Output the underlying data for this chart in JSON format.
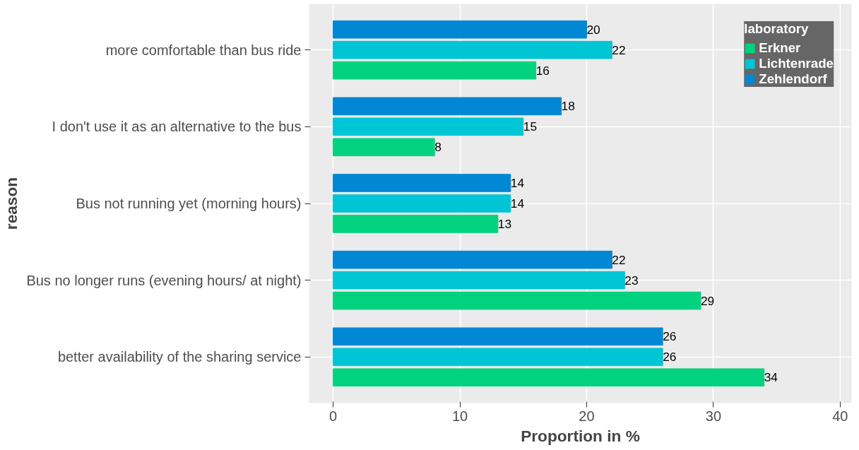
{
  "chart_data": {
    "type": "bar",
    "orientation": "horizontal",
    "xlabel": "Proportion in %",
    "ylabel": "reason",
    "legend_title": "laboratory",
    "legend": "top right",
    "grid": true,
    "data_labels": true,
    "categories": [
      "more comfortable than bus ride",
      "I don't use it as an alternative to the bus",
      "Bus not running yet (morning hours)",
      "Bus no longer runs (evening hours/ at night)",
      "better availability of the sharing service"
    ],
    "xlim": [
      -1.9,
      40.9
    ],
    "xticks": [
      0,
      10,
      20,
      30,
      40
    ],
    "series": [
      {
        "name": "Erkner",
        "color": "#00d27f",
        "values": [
          16,
          8,
          13,
          29,
          34
        ]
      },
      {
        "name": "Lichtenrade",
        "color": "#00c5d5",
        "values": [
          22,
          15,
          14,
          23,
          26
        ]
      },
      {
        "name": "Zehlendorf",
        "color": "#0088d5",
        "values": [
          20,
          18,
          14,
          22,
          26
        ]
      }
    ]
  }
}
